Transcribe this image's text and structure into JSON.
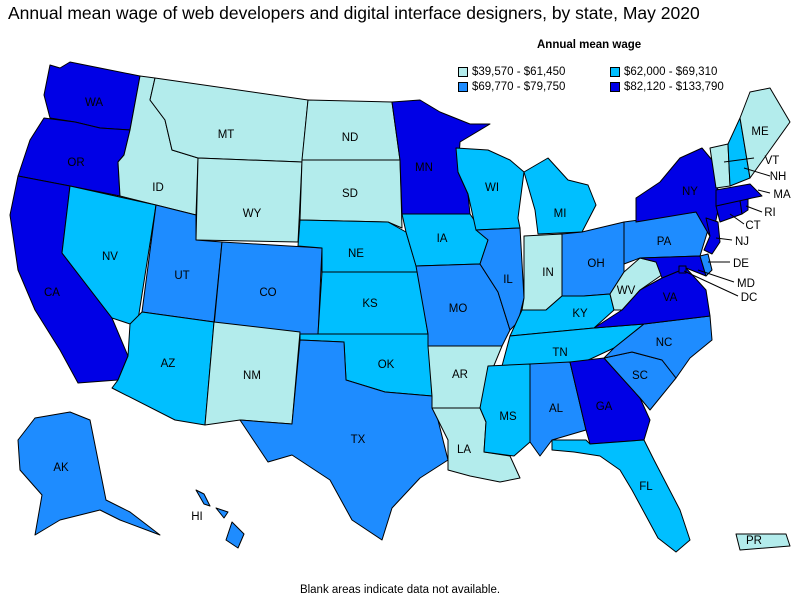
{
  "title": "Annual mean wage of web developers and digital interface designers, by state, May 2020",
  "legend": {
    "heading": "Annual mean wage",
    "bins": [
      {
        "label": "$39,570 - $61,450",
        "color": "#b3ecec"
      },
      {
        "label": "$62,000 - $69,310",
        "color": "#00bfff"
      },
      {
        "label": "$69,770 - $79,750",
        "color": "#1e8cff"
      },
      {
        "label": "$82,120 - $133,790",
        "color": "#0000e6"
      }
    ]
  },
  "footnote": "Blank areas indicate data not available.",
  "states": {
    "WA": 3,
    "OR": 3,
    "CA": 3,
    "ID": 0,
    "NV": 1,
    "MT": 0,
    "WY": 0,
    "UT": 2,
    "AZ": 1,
    "CO": 2,
    "NM": 0,
    "ND": 0,
    "SD": 0,
    "NE": 1,
    "KS": 1,
    "OK": 1,
    "TX": 2,
    "MN": 3,
    "IA": 1,
    "MO": 2,
    "AR": 0,
    "LA": 0,
    "WI": 1,
    "IL": 2,
    "MS": 1,
    "MI": 1,
    "IN": 0,
    "KY": 1,
    "TN": 1,
    "AL": 2,
    "OH": 2,
    "WV": 0,
    "GA": 3,
    "FL": 1,
    "SC": 2,
    "NC": 2,
    "VA": 3,
    "PA": 2,
    "NY": 3,
    "ME": 0,
    "VT": 0,
    "NH": 1,
    "MA": 3,
    "RI": 3,
    "CT": 3,
    "NJ": 3,
    "DE": 2,
    "MD": 3,
    "DC": 3,
    "AK": 2,
    "HI": 2,
    "PR": 0
  }
}
